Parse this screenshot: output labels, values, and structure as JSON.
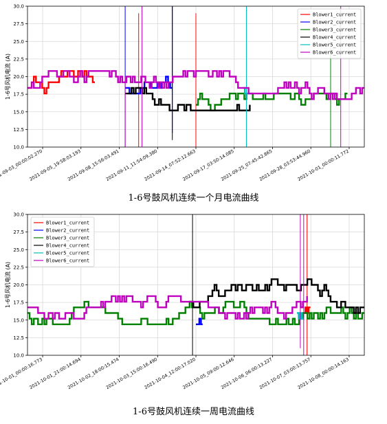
{
  "chart_data": [
    {
      "type": "line",
      "title": "",
      "caption": "1-6号鼓风机连续一个月电流曲线",
      "xlabel": "",
      "ylabel": "1-6号风机电流 (A)",
      "ylim": [
        10.0,
        30.0
      ],
      "yticks": [
        "10.0",
        "12.5",
        "15.0",
        "17.5",
        "20.0",
        "22.5",
        "25.0",
        "27.5",
        "30.0"
      ],
      "grid": true,
      "legend_position": "top-right",
      "xticks": [
        "2021-09-03_00:00:02.270",
        "2021-09-05_19:58:03.193",
        "2021-09-08_15:56:03.491",
        "2021-09-11_11:54:09.380",
        "2021-09-14_07:52:12.663",
        "2021-09-17_03:50:14.085",
        "2021-09-25_07:45:42.865",
        "2021-09-28_03:53:44.960",
        "2021-10-01_00:00:11.772"
      ],
      "series": [
        {
          "name": "Blower1_current",
          "color": "#ff0000",
          "segment": [
            0.0,
            0.2
          ],
          "base": 18.5,
          "amp": 2.5,
          "spikes": [
            [
              0.33,
              10,
              29
            ],
            [
              0.5,
              10,
              29
            ]
          ]
        },
        {
          "name": "Blower2_current",
          "color": "#0000ff",
          "segment": [
            0.29,
            0.43
          ],
          "base": 18.5,
          "amp": 2.5,
          "spikes": [
            [
              0.29,
              10,
              30
            ],
            [
              0.43,
              12,
              30
            ]
          ]
        },
        {
          "name": "Blower3_current",
          "color": "#008000",
          "segment": [
            0.5,
            0.95
          ],
          "base": 16.2,
          "amp": 1.4,
          "spikes": [
            [
              0.9,
              10,
              24
            ]
          ]
        },
        {
          "name": "Blower4_current",
          "color": "#000000",
          "segment": [
            0.29,
            0.66
          ],
          "base": 18.0,
          "amp": 3.2,
          "spikes": [
            [
              0.43,
              11,
              30
            ]
          ]
        },
        {
          "name": "Blower5_current",
          "color": "#00bfbf",
          "segment": [
            0.64,
            0.66
          ],
          "base": 18.5,
          "amp": 1.0,
          "spikes": [
            [
              0.65,
              10,
              30
            ]
          ]
        },
        {
          "name": "Blower6_current",
          "color": "#bf00bf",
          "segment": [
            0.0,
            1.0
          ],
          "base": 18.8,
          "amp": 2.2,
          "spikes": [
            [
              0.29,
              10,
              20
            ],
            [
              0.34,
              10,
              30
            ],
            [
              0.93,
              10,
              30
            ]
          ]
        }
      ]
    },
    {
      "type": "line",
      "title": "",
      "caption": "1-6号鼓风机连续一周电流曲线",
      "xlabel": "",
      "ylabel": "1-6号风机电流 (A)",
      "ylim": [
        10.0,
        30.0
      ],
      "yticks": [
        "10.0",
        "12.5",
        "15.0",
        "17.5",
        "20.0",
        "22.5",
        "25.0",
        "27.5",
        "30.0"
      ],
      "grid": true,
      "legend_position": "top-left",
      "xticks": [
        "2021-10-01_00:00:16.773",
        "2021-10-01_21:00:14.694",
        "2021-10-02_18:00:15.474",
        "2021-10-03_15:00:16.490",
        "2021-10-04_12:00:17.020",
        "2021-10-05_09:00:12.646",
        "2021-10-06_06:00:13.227",
        "2021-10-07_03:00:13.757",
        "2021-10-08_00:00:14.163"
      ],
      "series": [
        {
          "name": "Blower1_current",
          "color": "#ff0000",
          "segment": [
            0.82,
            0.84
          ],
          "base": 16.5,
          "amp": 1.0,
          "spikes": [
            [
              0.83,
              10,
              30
            ]
          ]
        },
        {
          "name": "Blower2_current",
          "color": "#0000ff",
          "segment": [
            0.5,
            0.52
          ],
          "base": 15.0,
          "amp": 0.5,
          "spikes": []
        },
        {
          "name": "Blower3_current",
          "color": "#008000",
          "segment": [
            0.0,
            1.0
          ],
          "base": 16.0,
          "amp": 1.5,
          "spikes": []
        },
        {
          "name": "Blower4_current",
          "color": "#000000",
          "segment": [
            0.48,
            1.0
          ],
          "base": 17.8,
          "amp": 2.6,
          "spikes": [
            [
              0.49,
              10,
              30
            ]
          ]
        },
        {
          "name": "Blower5_current",
          "color": "#00bfbf",
          "segment": [
            0.8,
            0.82
          ],
          "base": 16.0,
          "amp": 0.5,
          "spikes": []
        },
        {
          "name": "Blower6_current",
          "color": "#bf00bf",
          "segment": [
            0.0,
            0.83
          ],
          "base": 17.0,
          "amp": 1.6,
          "spikes": [
            [
              0.82,
              10,
              30
            ],
            [
              0.81,
              11,
              30
            ]
          ]
        }
      ]
    }
  ]
}
